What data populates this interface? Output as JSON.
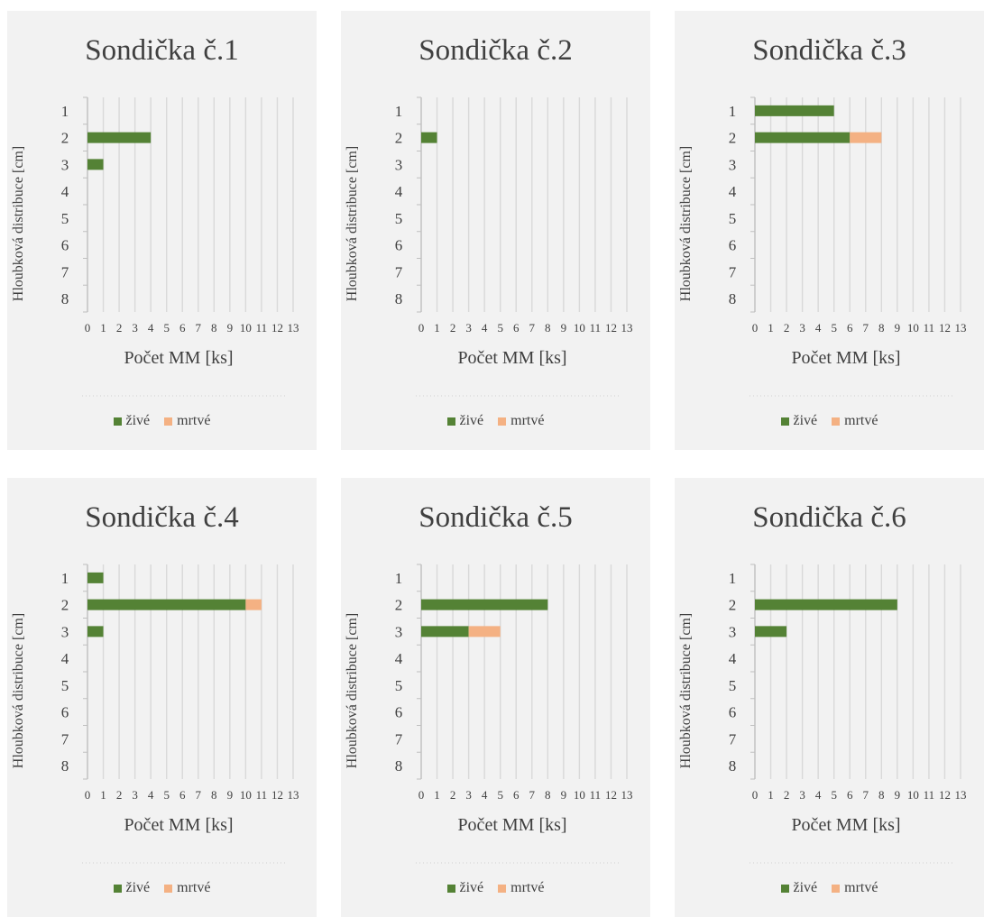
{
  "colors": {
    "live": "#548235",
    "dead": "#f4b183",
    "grid": "#d9d9d9",
    "axis": "#bfbfbf",
    "text": "#404040",
    "background": "#f2f2f2"
  },
  "chart_data": [
    {
      "type": "bar",
      "orientation": "horizontal",
      "stacked": true,
      "title": "Sondička č.1",
      "xlabel": "Počet MM [ks]",
      "ylabel": "Hloubková distribuce [cm]",
      "categories": [
        "1",
        "2",
        "3",
        "4",
        "5",
        "6",
        "7",
        "8"
      ],
      "xlim": [
        0,
        13
      ],
      "xticks": [
        "0",
        "1",
        "2",
        "3",
        "4",
        "5",
        "6",
        "7",
        "8",
        "9",
        "10",
        "11",
        "12",
        "13"
      ],
      "legend": "bottom",
      "series": [
        {
          "name": "živé",
          "values": [
            0,
            4,
            1,
            0,
            0,
            0,
            0,
            0
          ]
        },
        {
          "name": "mrtvé",
          "values": [
            0,
            0,
            0,
            0,
            0,
            0,
            0,
            0
          ]
        }
      ]
    },
    {
      "type": "bar",
      "orientation": "horizontal",
      "stacked": true,
      "title": "Sondička č.2",
      "xlabel": "Počet MM [ks]",
      "ylabel": "Hloubková distribuce [cm]",
      "categories": [
        "1",
        "2",
        "3",
        "4",
        "5",
        "6",
        "7",
        "8"
      ],
      "xlim": [
        0,
        13
      ],
      "xticks": [
        "0",
        "1",
        "2",
        "3",
        "4",
        "5",
        "6",
        "7",
        "8",
        "9",
        "10",
        "11",
        "12",
        "13"
      ],
      "legend": "bottom",
      "series": [
        {
          "name": "živé",
          "values": [
            0,
            1,
            0,
            0,
            0,
            0,
            0,
            0
          ]
        },
        {
          "name": "mrtvé",
          "values": [
            0,
            0,
            0,
            0,
            0,
            0,
            0,
            0
          ]
        }
      ]
    },
    {
      "type": "bar",
      "orientation": "horizontal",
      "stacked": true,
      "title": "Sondička č.3",
      "xlabel": "Počet MM [ks]",
      "ylabel": "Hloubková distribuce [cm]",
      "categories": [
        "1",
        "2",
        "3",
        "4",
        "5",
        "6",
        "7",
        "8"
      ],
      "xlim": [
        0,
        13
      ],
      "xticks": [
        "0",
        "1",
        "2",
        "3",
        "4",
        "5",
        "6",
        "7",
        "8",
        "9",
        "10",
        "11",
        "12",
        "13"
      ],
      "legend": "bottom",
      "series": [
        {
          "name": "živé",
          "values": [
            5,
            6,
            0,
            0,
            0,
            0,
            0,
            0
          ]
        },
        {
          "name": "mrtvé",
          "values": [
            0,
            2,
            0,
            0,
            0,
            0,
            0,
            0
          ]
        }
      ]
    },
    {
      "type": "bar",
      "orientation": "horizontal",
      "stacked": true,
      "title": "Sondička č.4",
      "xlabel": "Počet MM [ks]",
      "ylabel": "Hloubková distribuce [cm]",
      "categories": [
        "1",
        "2",
        "3",
        "4",
        "5",
        "6",
        "7",
        "8"
      ],
      "xlim": [
        0,
        13
      ],
      "xticks": [
        "0",
        "1",
        "2",
        "3",
        "4",
        "5",
        "6",
        "7",
        "8",
        "9",
        "10",
        "11",
        "12",
        "13"
      ],
      "legend": "bottom",
      "series": [
        {
          "name": "živé",
          "values": [
            1,
            10,
            1,
            0,
            0,
            0,
            0,
            0
          ]
        },
        {
          "name": "mrtvé",
          "values": [
            0,
            1,
            0,
            0,
            0,
            0,
            0,
            0
          ]
        }
      ]
    },
    {
      "type": "bar",
      "orientation": "horizontal",
      "stacked": true,
      "title": "Sondička č.5",
      "xlabel": "Počet MM [ks]",
      "ylabel": "Hloubková distribuce [cm]",
      "categories": [
        "1",
        "2",
        "3",
        "4",
        "5",
        "6",
        "7",
        "8"
      ],
      "xlim": [
        0,
        13
      ],
      "xticks": [
        "0",
        "1",
        "2",
        "3",
        "4",
        "5",
        "6",
        "7",
        "8",
        "9",
        "10",
        "11",
        "12",
        "13"
      ],
      "legend": "bottom",
      "series": [
        {
          "name": "živé",
          "values": [
            0,
            8,
            3,
            0,
            0,
            0,
            0,
            0
          ]
        },
        {
          "name": "mrtvé",
          "values": [
            0,
            0,
            2,
            0,
            0,
            0,
            0,
            0
          ]
        }
      ]
    },
    {
      "type": "bar",
      "orientation": "horizontal",
      "stacked": true,
      "title": "Sondička č.6",
      "xlabel": "Počet MM [ks]",
      "ylabel": "Hloubková distribuce [cm]",
      "categories": [
        "1",
        "2",
        "3",
        "4",
        "5",
        "6",
        "7",
        "8"
      ],
      "xlim": [
        0,
        13
      ],
      "xticks": [
        "0",
        "1",
        "2",
        "3",
        "4",
        "5",
        "6",
        "7",
        "8",
        "9",
        "10",
        "11",
        "12",
        "13"
      ],
      "legend": "bottom",
      "series": [
        {
          "name": "živé",
          "values": [
            0,
            9,
            2,
            0,
            0,
            0,
            0,
            0
          ]
        },
        {
          "name": "mrtvé",
          "values": [
            0,
            0,
            0,
            0,
            0,
            0,
            0,
            0
          ]
        }
      ]
    }
  ]
}
